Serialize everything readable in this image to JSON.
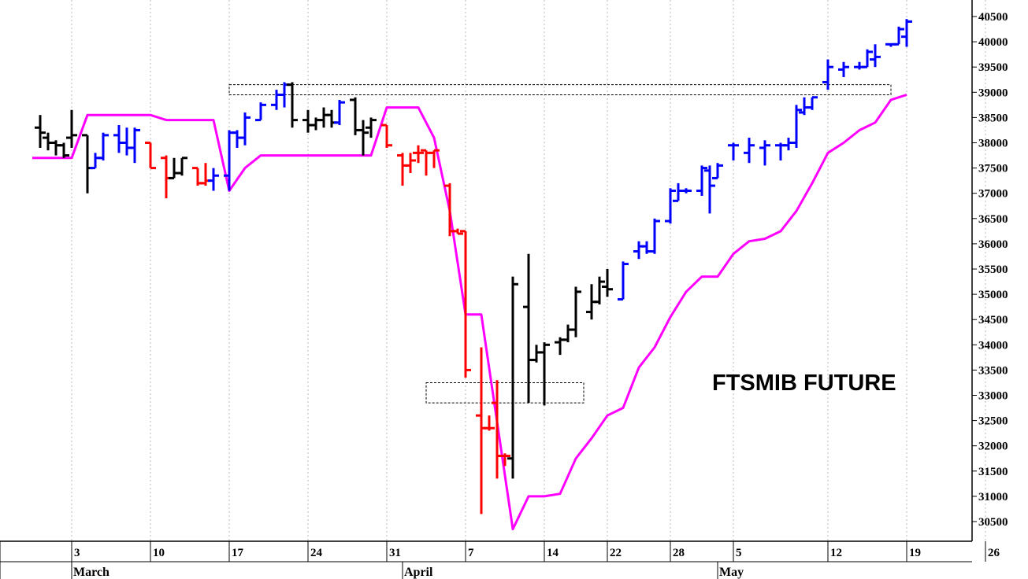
{
  "chart_data": {
    "type": "ohlc",
    "title": "FTSMIB FUTURE",
    "y_range": [
      30000,
      40900
    ],
    "y_ticks": [
      30500,
      31000,
      31500,
      32000,
      32500,
      33000,
      33500,
      34000,
      34500,
      35000,
      35500,
      36000,
      36500,
      37000,
      37500,
      38000,
      38500,
      39000,
      39500,
      40000,
      40500
    ],
    "x_ticks": [
      {
        "label": "3",
        "day": 2
      },
      {
        "label": "10",
        "day": 7
      },
      {
        "label": "17",
        "day": 12
      },
      {
        "label": "24",
        "day": 17
      },
      {
        "label": "31",
        "day": 22
      },
      {
        "label": "7",
        "day": 27
      },
      {
        "label": "14",
        "day": 32
      },
      {
        "label": "22",
        "day": 36
      },
      {
        "label": "28",
        "day": 40
      },
      {
        "label": "5",
        "day": 44
      },
      {
        "label": "12",
        "day": 50
      },
      {
        "label": "19",
        "day": 55
      },
      {
        "label": "26",
        "day": 60
      }
    ],
    "months": [
      {
        "label": "March",
        "day": 2
      },
      {
        "label": "April",
        "day": 23
      },
      {
        "label": "May",
        "day": 43
      }
    ],
    "colors": {
      "black": "#000000",
      "red": "#ff0000",
      "blue": "#0000ff",
      "stop_line": "#ff00ff"
    },
    "bars": [
      {
        "day": 0,
        "o": 38300,
        "h": 38550,
        "l": 37900,
        "c": 38200,
        "color": "black"
      },
      {
        "day": 0.5,
        "o": 38100,
        "h": 38200,
        "l": 37850,
        "c": 38000,
        "color": "black"
      },
      {
        "day": 1,
        "o": 38000,
        "h": 38050,
        "l": 37750,
        "c": 37950,
        "color": "black"
      },
      {
        "day": 1.5,
        "o": 37950,
        "h": 38000,
        "l": 37700,
        "c": 37750,
        "color": "black"
      },
      {
        "day": 2,
        "o": 38100,
        "h": 38650,
        "l": 37900,
        "c": 38150,
        "color": "black"
      },
      {
        "day": 3,
        "o": 38150,
        "h": 38150,
        "l": 37000,
        "c": 37500,
        "color": "black"
      },
      {
        "day": 3.5,
        "o": 37500,
        "h": 37800,
        "l": 37500,
        "c": 37700,
        "color": "blue"
      },
      {
        "day": 4,
        "o": 37700,
        "h": 38200,
        "l": 37650,
        "c": 38150,
        "color": "blue"
      },
      {
        "day": 5,
        "o": 38150,
        "h": 38350,
        "l": 37800,
        "c": 38000,
        "color": "blue"
      },
      {
        "day": 5.5,
        "o": 38000,
        "h": 38300,
        "l": 37750,
        "c": 37900,
        "color": "blue"
      },
      {
        "day": 6,
        "o": 37900,
        "h": 38300,
        "l": 37600,
        "c": 38250,
        "color": "blue"
      },
      {
        "day": 7,
        "o": 38000,
        "h": 38000,
        "l": 37500,
        "c": 37500,
        "color": "red"
      },
      {
        "day": 8,
        "o": 37700,
        "h": 37750,
        "l": 36900,
        "c": 37300,
        "color": "red"
      },
      {
        "day": 8.5,
        "o": 37300,
        "h": 37700,
        "l": 37300,
        "c": 37400,
        "color": "black"
      },
      {
        "day": 9,
        "o": 37400,
        "h": 37700,
        "l": 37350,
        "c": 37700,
        "color": "black"
      },
      {
        "day": 10,
        "o": 37500,
        "h": 37500,
        "l": 37150,
        "c": 37200,
        "color": "red"
      },
      {
        "day": 10.5,
        "o": 37200,
        "h": 37600,
        "l": 37150,
        "c": 37250,
        "color": "red"
      },
      {
        "day": 11,
        "o": 37250,
        "h": 37500,
        "l": 37050,
        "c": 37350,
        "color": "blue"
      },
      {
        "day": 12,
        "o": 37350,
        "h": 38250,
        "l": 37050,
        "c": 38200,
        "color": "blue"
      },
      {
        "day": 12.5,
        "o": 38200,
        "h": 38250,
        "l": 37900,
        "c": 38100,
        "color": "blue"
      },
      {
        "day": 13,
        "o": 38100,
        "h": 38600,
        "l": 37950,
        "c": 38500,
        "color": "blue"
      },
      {
        "day": 14,
        "o": 38450,
        "h": 38800,
        "l": 38450,
        "c": 38750,
        "color": "blue"
      },
      {
        "day": 15,
        "o": 38750,
        "h": 39050,
        "l": 38650,
        "c": 38950,
        "color": "blue"
      },
      {
        "day": 15.5,
        "o": 38950,
        "h": 39200,
        "l": 38700,
        "c": 39150,
        "color": "blue"
      },
      {
        "day": 16,
        "o": 39150,
        "h": 39200,
        "l": 38300,
        "c": 38450,
        "color": "black"
      },
      {
        "day": 17,
        "o": 38450,
        "h": 38650,
        "l": 38200,
        "c": 38350,
        "color": "black"
      },
      {
        "day": 17.5,
        "o": 38350,
        "h": 38500,
        "l": 38250,
        "c": 38450,
        "color": "black"
      },
      {
        "day": 18,
        "o": 38450,
        "h": 38700,
        "l": 38300,
        "c": 38550,
        "color": "black"
      },
      {
        "day": 18.5,
        "o": 38550,
        "h": 38650,
        "l": 38300,
        "c": 38400,
        "color": "black"
      },
      {
        "day": 19,
        "o": 38400,
        "h": 38850,
        "l": 38350,
        "c": 38800,
        "color": "blue"
      },
      {
        "day": 20,
        "o": 38850,
        "h": 38900,
        "l": 38150,
        "c": 38250,
        "color": "black"
      },
      {
        "day": 20.5,
        "o": 38250,
        "h": 38450,
        "l": 37750,
        "c": 38200,
        "color": "black"
      },
      {
        "day": 21,
        "o": 38300,
        "h": 38500,
        "l": 38100,
        "c": 38450,
        "color": "black"
      },
      {
        "day": 22,
        "o": 38350,
        "h": 38350,
        "l": 37900,
        "c": 37950,
        "color": "red"
      },
      {
        "day": 23,
        "o": 37750,
        "h": 37800,
        "l": 37150,
        "c": 37550,
        "color": "red"
      },
      {
        "day": 23.5,
        "o": 37550,
        "h": 37800,
        "l": 37400,
        "c": 37650,
        "color": "red"
      },
      {
        "day": 24,
        "o": 37800,
        "h": 37950,
        "l": 37600,
        "c": 37800,
        "color": "red"
      },
      {
        "day": 24.5,
        "o": 37850,
        "h": 37850,
        "l": 37350,
        "c": 37800,
        "color": "red"
      },
      {
        "day": 25,
        "o": 37800,
        "h": 37850,
        "l": 37500,
        "c": 37850,
        "color": "red"
      },
      {
        "day": 26,
        "o": 37150,
        "h": 37200,
        "l": 36150,
        "c": 36250,
        "color": "red"
      },
      {
        "day": 26.5,
        "o": 36250,
        "h": 36300,
        "l": 36200,
        "c": 36200,
        "color": "red"
      },
      {
        "day": 27,
        "o": 36250,
        "h": 36250,
        "l": 33350,
        "c": 33500,
        "color": "red"
      },
      {
        "day": 28,
        "o": 32600,
        "h": 33950,
        "l": 30650,
        "c": 32350,
        "color": "red"
      },
      {
        "day": 28.5,
        "o": 32350,
        "h": 32600,
        "l": 32300,
        "c": 32350,
        "color": "red"
      },
      {
        "day": 29,
        "o": 32850,
        "h": 33300,
        "l": 31350,
        "c": 31800,
        "color": "red"
      },
      {
        "day": 29.5,
        "o": 31800,
        "h": 31850,
        "l": 31600,
        "c": 31800,
        "color": "red"
      },
      {
        "day": 30,
        "o": 31750,
        "h": 35350,
        "l": 31350,
        "c": 35200,
        "color": "black"
      },
      {
        "day": 31,
        "o": 34750,
        "h": 35800,
        "l": 32850,
        "c": 33700,
        "color": "black"
      },
      {
        "day": 31.5,
        "o": 33700,
        "h": 34000,
        "l": 33650,
        "c": 33850,
        "color": "black"
      },
      {
        "day": 32,
        "o": 33850,
        "h": 34050,
        "l": 32800,
        "c": 34000,
        "color": "black"
      },
      {
        "day": 33,
        "o": 34050,
        "h": 34150,
        "l": 33800,
        "c": 34100,
        "color": "black"
      },
      {
        "day": 33.5,
        "o": 34100,
        "h": 34400,
        "l": 34050,
        "c": 34300,
        "color": "black"
      },
      {
        "day": 34,
        "o": 34300,
        "h": 35150,
        "l": 34150,
        "c": 35050,
        "color": "black"
      },
      {
        "day": 35,
        "o": 34650,
        "h": 35200,
        "l": 34500,
        "c": 34850,
        "color": "black"
      },
      {
        "day": 35.5,
        "o": 34850,
        "h": 35350,
        "l": 34800,
        "c": 35250,
        "color": "black"
      },
      {
        "day": 36,
        "o": 35150,
        "h": 35500,
        "l": 34950,
        "c": 35100,
        "color": "black"
      },
      {
        "day": 37,
        "o": 34900,
        "h": 35650,
        "l": 34900,
        "c": 35600,
        "color": "blue"
      },
      {
        "day": 38,
        "o": 35850,
        "h": 36050,
        "l": 35700,
        "c": 35950,
        "color": "blue"
      },
      {
        "day": 38.5,
        "o": 35950,
        "h": 36050,
        "l": 35800,
        "c": 35850,
        "color": "blue"
      },
      {
        "day": 39,
        "o": 35850,
        "h": 36500,
        "l": 35800,
        "c": 36450,
        "color": "blue"
      },
      {
        "day": 40,
        "o": 36450,
        "h": 37100,
        "l": 36400,
        "c": 37050,
        "color": "blue"
      },
      {
        "day": 40.5,
        "o": 36850,
        "h": 37200,
        "l": 36850,
        "c": 37050,
        "color": "blue"
      },
      {
        "day": 41,
        "o": 37050,
        "h": 37100,
        "l": 37000,
        "c": 37050,
        "color": "blue"
      },
      {
        "day": 42,
        "o": 37050,
        "h": 37550,
        "l": 36950,
        "c": 37500,
        "color": "blue"
      },
      {
        "day": 42.5,
        "o": 37450,
        "h": 37550,
        "l": 36600,
        "c": 37150,
        "color": "blue"
      },
      {
        "day": 43,
        "o": 37300,
        "h": 37600,
        "l": 37300,
        "c": 37550,
        "color": "blue"
      },
      {
        "day": 44,
        "o": 37950,
        "h": 38000,
        "l": 37650,
        "c": 37950,
        "color": "blue"
      },
      {
        "day": 45,
        "o": 37800,
        "h": 38100,
        "l": 37600,
        "c": 37950,
        "color": "blue"
      },
      {
        "day": 46,
        "o": 37900,
        "h": 38050,
        "l": 37550,
        "c": 37950,
        "color": "blue"
      },
      {
        "day": 47,
        "o": 37950,
        "h": 38000,
        "l": 37650,
        "c": 37950,
        "color": "blue"
      },
      {
        "day": 47.5,
        "o": 37950,
        "h": 38100,
        "l": 37850,
        "c": 38000,
        "color": "blue"
      },
      {
        "day": 48,
        "o": 38000,
        "h": 38750,
        "l": 37900,
        "c": 38650,
        "color": "blue"
      },
      {
        "day": 48.5,
        "o": 38600,
        "h": 38900,
        "l": 38550,
        "c": 38700,
        "color": "blue"
      },
      {
        "day": 49,
        "o": 38700,
        "h": 38900,
        "l": 38650,
        "c": 38900,
        "color": "blue"
      },
      {
        "day": 50,
        "o": 39200,
        "h": 39650,
        "l": 39050,
        "c": 39500,
        "color": "blue"
      },
      {
        "day": 51,
        "o": 39450,
        "h": 39600,
        "l": 39300,
        "c": 39500,
        "color": "blue"
      },
      {
        "day": 52,
        "o": 39500,
        "h": 39600,
        "l": 39450,
        "c": 39500,
        "color": "blue"
      },
      {
        "day": 52.5,
        "o": 39500,
        "h": 39850,
        "l": 39500,
        "c": 39800,
        "color": "blue"
      },
      {
        "day": 53,
        "o": 39650,
        "h": 39950,
        "l": 39500,
        "c": 39700,
        "color": "blue"
      },
      {
        "day": 54,
        "o": 39950,
        "h": 39950,
        "l": 39900,
        "c": 39950,
        "color": "blue"
      },
      {
        "day": 54.5,
        "o": 39950,
        "h": 40300,
        "l": 39950,
        "c": 40250,
        "color": "blue"
      },
      {
        "day": 55,
        "o": 40100,
        "h": 40450,
        "l": 39900,
        "c": 40400,
        "color": "blue"
      }
    ],
    "stop_line": [
      {
        "day": -0.5,
        "value": 37700
      },
      {
        "day": 2,
        "value": 37700
      },
      {
        "day": 3,
        "value": 38550
      },
      {
        "day": 7,
        "value": 38550
      },
      {
        "day": 8,
        "value": 38450
      },
      {
        "day": 11,
        "value": 38450
      },
      {
        "day": 12,
        "value": 37050
      },
      {
        "day": 13,
        "value": 37500
      },
      {
        "day": 14,
        "value": 37750
      },
      {
        "day": 21,
        "value": 37750
      },
      {
        "day": 22,
        "value": 38700
      },
      {
        "day": 24,
        "value": 38700
      },
      {
        "day": 25,
        "value": 38100
      },
      {
        "day": 26,
        "value": 36650
      },
      {
        "day": 27,
        "value": 34600
      },
      {
        "day": 28,
        "value": 34600
      },
      {
        "day": 30,
        "value": 30350
      },
      {
        "day": 31,
        "value": 31000
      },
      {
        "day": 32,
        "value": 31000
      },
      {
        "day": 33,
        "value": 31050
      },
      {
        "day": 34,
        "value": 31750
      },
      {
        "day": 35,
        "value": 32150
      },
      {
        "day": 36,
        "value": 32600
      },
      {
        "day": 37,
        "value": 32750
      },
      {
        "day": 38,
        "value": 33550
      },
      {
        "day": 39,
        "value": 33950
      },
      {
        "day": 40,
        "value": 34550
      },
      {
        "day": 41,
        "value": 35050
      },
      {
        "day": 42,
        "value": 35350
      },
      {
        "day": 43,
        "value": 35350
      },
      {
        "day": 44,
        "value": 35800
      },
      {
        "day": 45,
        "value": 36050
      },
      {
        "day": 46,
        "value": 36100
      },
      {
        "day": 47,
        "value": 36250
      },
      {
        "day": 48,
        "value": 36650
      },
      {
        "day": 49,
        "value": 37200
      },
      {
        "day": 50,
        "value": 37800
      },
      {
        "day": 51,
        "value": 38000
      },
      {
        "day": 52,
        "value": 38250
      },
      {
        "day": 53,
        "value": 38400
      },
      {
        "day": 54,
        "value": 38850
      },
      {
        "day": 55,
        "value": 38950
      }
    ],
    "zones": [
      {
        "day_start": 12,
        "day_end": 54,
        "y_low": 38950,
        "y_high": 39150
      },
      {
        "day_start": 24.5,
        "day_end": 34.5,
        "y_low": 32850,
        "y_high": 33250
      }
    ],
    "grid": {
      "vertical": true,
      "horizontal": false
    }
  }
}
